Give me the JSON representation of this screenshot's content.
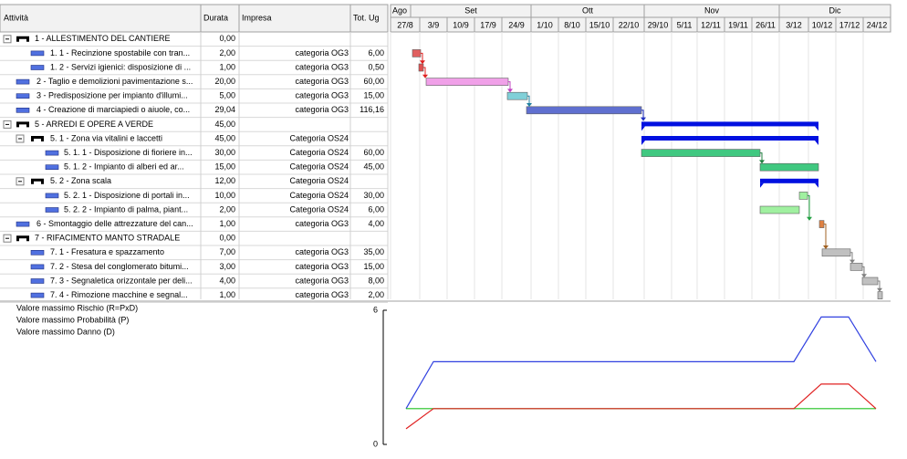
{
  "columns": [
    "Attività",
    "Durata",
    "Impresa",
    "Tot. Ug"
  ],
  "timeline": {
    "months": [
      "Ago",
      "Set",
      "Ott",
      "Nov",
      "Dic"
    ],
    "weeks": [
      "27/8",
      "3/9",
      "10/9",
      "17/9",
      "24/9",
      "1/10",
      "8/10",
      "15/10",
      "22/10",
      "29/10",
      "5/11",
      "12/11",
      "19/11",
      "26/11",
      "3/12",
      "10/12",
      "17/12",
      "24/12"
    ]
  },
  "rows": [
    {
      "text": "1 - ALLESTIMENTO DEL CANTIERE",
      "durata": "0,00"
    },
    {
      "text": "1. 1 - Recinzione spostabile con tran...",
      "durata": "2,00",
      "impresa": "categoria OG3",
      "tot": "6,00"
    },
    {
      "text": "1. 2 - Servizi igienici: disposizione di ...",
      "durata": "1,00",
      "impresa": "categoria OG3",
      "tot": "0,50"
    },
    {
      "text": "2 - Taglio e demolizioni pavimentazione s...",
      "durata": "20,00",
      "impresa": "categoria OG3",
      "tot": "60,00"
    },
    {
      "text": "3 - Predisposizione per impianto d'illumi...",
      "durata": "5,00",
      "impresa": "categoria OG3",
      "tot": "15,00"
    },
    {
      "text": "4 - Creazione di marciapiedi  o aiuole, co...",
      "durata": "29,04",
      "impresa": "categoria OG3",
      "tot": "116,16"
    },
    {
      "text": "5 - ARREDI E OPERE A VERDE",
      "durata": "45,00"
    },
    {
      "text": "5. 1 - Zona via vitalini e laccetti",
      "durata": "45,00",
      "impresa": "Categoria OS24"
    },
    {
      "text": "5. 1. 1 - Disposizione di fioriere in...",
      "durata": "30,00",
      "impresa": "Categoria OS24",
      "tot": "60,00"
    },
    {
      "text": "5. 1. 2 - Impianto di  alberi ed  ar...",
      "durata": "15,00",
      "impresa": "Categoria OS24",
      "tot": "45,00"
    },
    {
      "text": "5. 2 - Zona scala",
      "durata": "12,00",
      "impresa": "Categoria OS24"
    },
    {
      "text": "5. 2. 1 - Disposizione di  portali in...",
      "durata": "10,00",
      "impresa": "Categoria OS24",
      "tot": "30,00"
    },
    {
      "text": "5. 2. 2 - Impianto di  palma, piant...",
      "durata": "2,00",
      "impresa": "Categoria OS24",
      "tot": "6,00"
    },
    {
      "text": "6 - Smontaggio delle attrezzature del can...",
      "durata": "1,00",
      "impresa": "categoria OG3",
      "tot": "4,00"
    },
    {
      "text": "7 - RIFACIMENTO MANTO STRADALE",
      "durata": "0,00"
    },
    {
      "text": "7. 1 - Fresatura e spazzamento",
      "durata": "7,00",
      "impresa": "categoria OG3",
      "tot": "35,00"
    },
    {
      "text": "7. 2 - Stesa del conglomerato bitumi...",
      "durata": "3,00",
      "impresa": "categoria OG3",
      "tot": "15,00"
    },
    {
      "text": "7. 3 - Segnaletica orizzontale per deli...",
      "durata": "4,00",
      "impresa": "categoria OG3",
      "tot": "8,00"
    },
    {
      "text": "7. 4 - Rimozione macchine e segnal...",
      "durata": "1,00",
      "impresa": "categoria OG3",
      "tot": "2,00"
    }
  ],
  "risk_chart": {
    "type": "line",
    "ylim": [
      0,
      6
    ],
    "yticks": [
      0,
      6
    ],
    "series": [
      {
        "name": "Valore massimo Rischio (R=PxD)",
        "color": "#3040e0",
        "values": [
          1.6,
          3.7,
          3.7,
          5.7,
          5.7,
          3.7
        ]
      },
      {
        "name": "Valore massimo Probabilità (P)",
        "color": "#20c020",
        "values": [
          1.6,
          1.6,
          1.6,
          1.6,
          1.6,
          1.6
        ]
      },
      {
        "name": "Valore massimo Danno (D)",
        "color": "#e02020",
        "values": [
          0.7,
          1.6,
          1.6,
          2.7,
          2.7,
          1.6
        ]
      }
    ]
  }
}
